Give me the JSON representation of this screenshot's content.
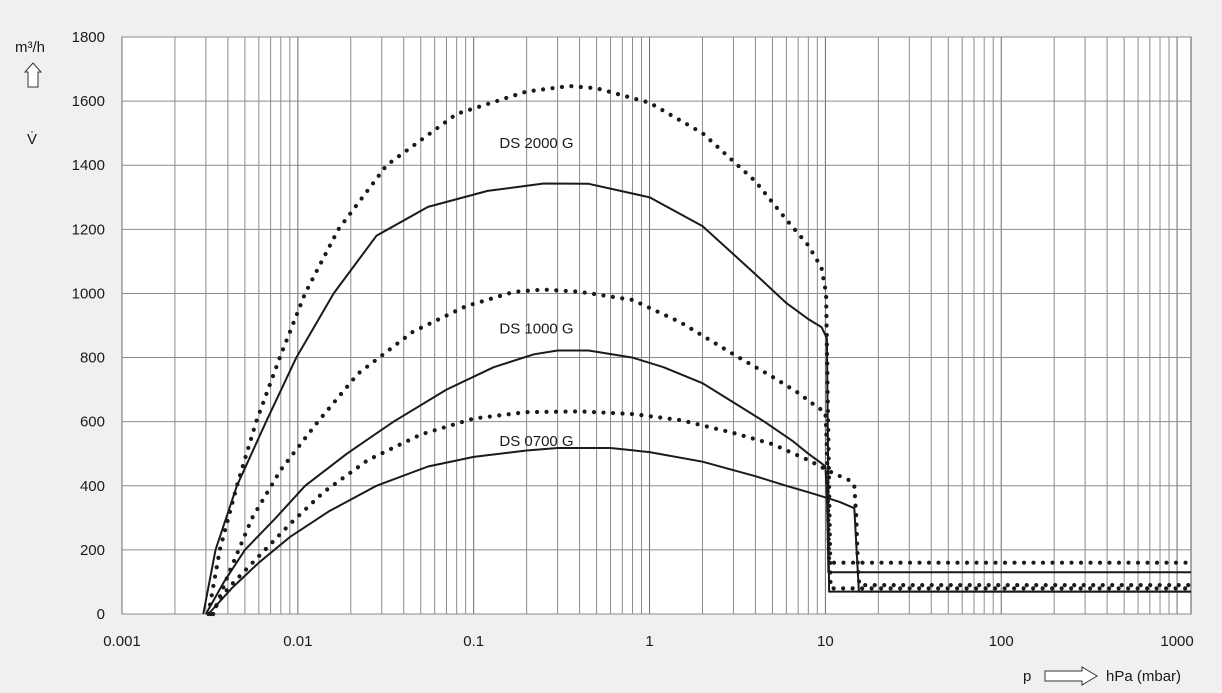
{
  "chart_data": {
    "type": "line",
    "x_scale": "log",
    "xlim": [
      0.001,
      1200
    ],
    "ylim": [
      0,
      1800
    ],
    "grid": true,
    "ylabel_unit": "m³/h",
    "ylabel_symbol": "V̇",
    "xlabel_symbol": "p",
    "xlabel_unit": "hPa (mbar)",
    "x_ticks": [
      {
        "value": 0.001,
        "label": "0.001"
      },
      {
        "value": 0.01,
        "label": "0.01"
      },
      {
        "value": 0.1,
        "label": "0.1"
      },
      {
        "value": 1,
        "label": "1"
      },
      {
        "value": 10,
        "label": "10"
      },
      {
        "value": 100,
        "label": "100"
      },
      {
        "value": 1000,
        "label": "1000"
      }
    ],
    "y_ticks": [
      {
        "value": 0,
        "label": "0"
      },
      {
        "value": 200,
        "label": "200"
      },
      {
        "value": 400,
        "label": "400"
      },
      {
        "value": 600,
        "label": "600"
      },
      {
        "value": 800,
        "label": "800"
      },
      {
        "value": 1000,
        "label": "1000"
      },
      {
        "value": 1200,
        "label": "1200"
      },
      {
        "value": 1400,
        "label": "1400"
      },
      {
        "value": 1600,
        "label": "1600"
      },
      {
        "value": 1800,
        "label": "1800"
      }
    ],
    "annotations": [
      {
        "text": "DS 2000 G",
        "x": 0.14,
        "y": 1470
      },
      {
        "text": "DS 1000 G",
        "x": 0.14,
        "y": 890
      },
      {
        "text": "DS 0700 G",
        "x": 0.14,
        "y": 540
      }
    ],
    "series": [
      {
        "style": "dotted",
        "points": [
          [
            0.0031,
            0
          ],
          [
            0.0036,
            200
          ],
          [
            0.0045,
            400
          ],
          [
            0.0058,
            600
          ],
          [
            0.0079,
            800
          ],
          [
            0.011,
            1000
          ],
          [
            0.017,
            1200
          ],
          [
            0.032,
            1400
          ],
          [
            0.08,
            1560
          ],
          [
            0.2,
            1630
          ],
          [
            0.35,
            1647
          ],
          [
            0.5,
            1640
          ],
          [
            1,
            1595
          ],
          [
            2,
            1500
          ],
          [
            4,
            1350
          ],
          [
            6,
            1230
          ],
          [
            8,
            1150
          ],
          [
            9.5,
            1080
          ],
          [
            10.1,
            1000
          ],
          [
            10.3,
            700
          ],
          [
            10.5,
            400
          ],
          [
            10.7,
            80
          ],
          [
            1200,
            80
          ]
        ]
      },
      {
        "style": "solid",
        "points": [
          [
            0.0029,
            0
          ],
          [
            0.0034,
            200
          ],
          [
            0.0045,
            400
          ],
          [
            0.0066,
            600
          ],
          [
            0.0098,
            800
          ],
          [
            0.016,
            1000
          ],
          [
            0.028,
            1180
          ],
          [
            0.055,
            1270
          ],
          [
            0.12,
            1320
          ],
          [
            0.25,
            1343
          ],
          [
            0.45,
            1342
          ],
          [
            1,
            1300
          ],
          [
            2,
            1210
          ],
          [
            4,
            1060
          ],
          [
            6,
            970
          ],
          [
            8,
            920
          ],
          [
            9.5,
            895
          ],
          [
            10.2,
            860
          ],
          [
            10.35,
            500
          ],
          [
            10.5,
            70
          ],
          [
            1200,
            70
          ]
        ]
      },
      {
        "style": "dotted",
        "points": [
          [
            0.0033,
            0
          ],
          [
            0.004,
            120
          ],
          [
            0.0055,
            300
          ],
          [
            0.008,
            450
          ],
          [
            0.013,
            600
          ],
          [
            0.022,
            750
          ],
          [
            0.045,
            880
          ],
          [
            0.09,
            960
          ],
          [
            0.17,
            1005
          ],
          [
            0.25,
            1012
          ],
          [
            0.4,
            1005
          ],
          [
            0.8,
            980
          ],
          [
            1.5,
            910
          ],
          [
            3,
            810
          ],
          [
            5,
            740
          ],
          [
            7,
            690
          ],
          [
            9,
            645
          ],
          [
            10,
            630
          ],
          [
            10.2,
            520
          ],
          [
            10.5,
            160
          ],
          [
            1200,
            160
          ]
        ]
      },
      {
        "style": "solid",
        "points": [
          [
            0.003,
            0
          ],
          [
            0.0038,
            100
          ],
          [
            0.005,
            200
          ],
          [
            0.0075,
            300
          ],
          [
            0.011,
            400
          ],
          [
            0.019,
            500
          ],
          [
            0.035,
            600
          ],
          [
            0.07,
            700
          ],
          [
            0.13,
            770
          ],
          [
            0.22,
            810
          ],
          [
            0.3,
            822
          ],
          [
            0.45,
            822
          ],
          [
            0.8,
            800
          ],
          [
            1.2,
            770
          ],
          [
            2,
            720
          ],
          [
            3,
            660
          ],
          [
            4.5,
            600
          ],
          [
            6.5,
            540
          ],
          [
            8,
            500
          ],
          [
            9.5,
            470
          ],
          [
            10,
            460
          ],
          [
            10.2,
            380
          ],
          [
            10.4,
            130
          ],
          [
            1200,
            130
          ]
        ]
      },
      {
        "style": "dotted",
        "points": [
          [
            0.0032,
            0
          ],
          [
            0.004,
            80
          ],
          [
            0.006,
            180
          ],
          [
            0.009,
            280
          ],
          [
            0.014,
            380
          ],
          [
            0.025,
            480
          ],
          [
            0.05,
            560
          ],
          [
            0.1,
            610
          ],
          [
            0.2,
            630
          ],
          [
            0.4,
            632
          ],
          [
            0.8,
            624
          ],
          [
            1.5,
            605
          ],
          [
            3,
            565
          ],
          [
            5,
            530
          ],
          [
            8,
            480
          ],
          [
            11,
            440
          ],
          [
            14,
            415
          ],
          [
            14.6,
            400
          ],
          [
            15,
            300
          ],
          [
            15.3,
            150
          ],
          [
            15.6,
            90
          ],
          [
            1200,
            90
          ]
        ]
      },
      {
        "style": "solid",
        "points": [
          [
            0.0031,
            0
          ],
          [
            0.0042,
            80
          ],
          [
            0.006,
            160
          ],
          [
            0.009,
            240
          ],
          [
            0.015,
            320
          ],
          [
            0.028,
            400
          ],
          [
            0.055,
            460
          ],
          [
            0.1,
            490
          ],
          [
            0.2,
            510
          ],
          [
            0.3,
            518
          ],
          [
            0.6,
            518
          ],
          [
            1,
            505
          ],
          [
            2,
            475
          ],
          [
            4,
            430
          ],
          [
            6,
            400
          ],
          [
            8,
            380
          ],
          [
            10.5,
            360
          ],
          [
            12,
            350
          ],
          [
            14.6,
            330
          ],
          [
            15.5,
            70
          ],
          [
            1200,
            70
          ]
        ]
      }
    ]
  }
}
